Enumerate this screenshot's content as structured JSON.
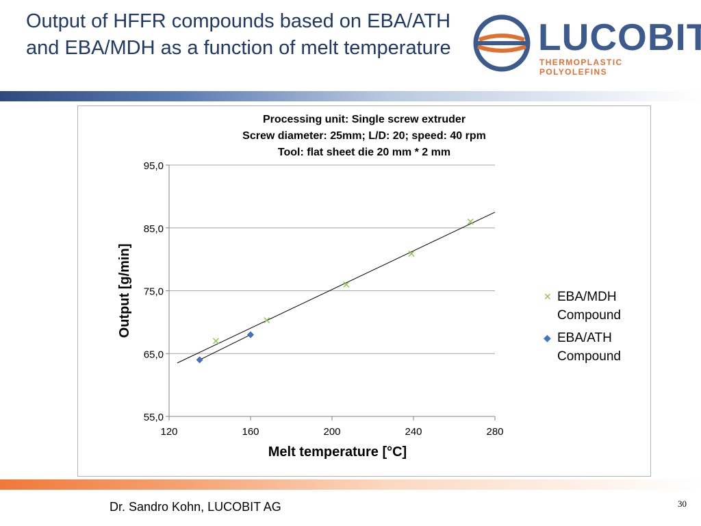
{
  "slide": {
    "title": "Output of HFFR compounds based on EBA/ATH and EBA/MDH as a function of melt temperature",
    "footer_author": "Dr. Sandro Kohn, LUCOBIT AG",
    "page_number": "30"
  },
  "logo": {
    "wordmark": "LUCOBIT",
    "tagline": "THERMOPLASTIC POLYOLEFINS",
    "brand_color": "#3c5a8c",
    "accent_color": "#e07030"
  },
  "colors": {
    "title": "#1f3864",
    "band_top": "#2e4a7c",
    "band_bottom": "#f07838",
    "series_mdh": "#8bc34a",
    "series_ath": "#4472c4"
  },
  "chart_data": {
    "type": "scatter",
    "title_lines": [
      "Processing unit: Single screw extruder",
      "Screw diameter: 25mm; L/D: 20; speed: 40 rpm",
      "Tool: flat sheet die 20 mm * 2 mm"
    ],
    "xlabel": "Melt temperature [°C]",
    "ylabel": "Output [g/min]",
    "xlim": [
      120,
      280
    ],
    "ylim": [
      55,
      95
    ],
    "x_ticks": [
      120,
      160,
      200,
      240,
      280
    ],
    "x_tick_labels": [
      "120",
      "160",
      "200",
      "240",
      "280"
    ],
    "y_ticks": [
      55,
      65,
      75,
      85,
      95
    ],
    "y_tick_labels": [
      "55,0",
      "65,0",
      "75,0",
      "85,0",
      "95,0"
    ],
    "grid": "horizontal",
    "legend_position": "right",
    "series": [
      {
        "name": "EBA/MDH Compound",
        "marker": "x",
        "x": [
          143,
          168,
          207,
          239,
          268
        ],
        "y": [
          67.0,
          70.3,
          76.0,
          80.9,
          86.0
        ],
        "trendline": {
          "x": [
            124,
            280
          ],
          "y": [
            63.5,
            87.5
          ]
        }
      },
      {
        "name": "EBA/ATH Compound",
        "marker": "diamond",
        "x": [
          135,
          160
        ],
        "y": [
          64.0,
          68.0
        ],
        "trendline": {
          "x": [
            135,
            160
          ],
          "y": [
            64.0,
            68.0
          ]
        }
      }
    ]
  }
}
